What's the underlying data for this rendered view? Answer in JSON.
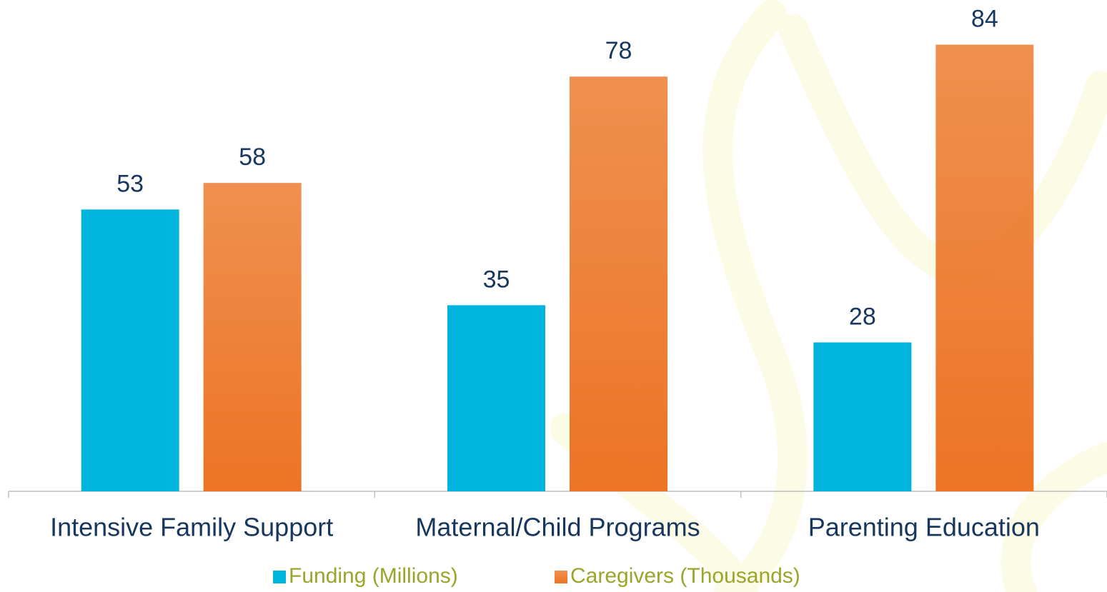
{
  "chart_data": {
    "type": "bar",
    "categories": [
      "Intensive Family Support",
      "Maternal/Child Programs",
      "Parenting Education"
    ],
    "series": [
      {
        "name": "Funding (Millions)",
        "color": "#00b4de",
        "values": [
          53,
          35,
          28
        ]
      },
      {
        "name": "Caregivers (Thousands)",
        "color": "#ec7424",
        "values": [
          58,
          78,
          84
        ]
      }
    ],
    "ylim": [
      0,
      92
    ],
    "legend": "bottom"
  }
}
